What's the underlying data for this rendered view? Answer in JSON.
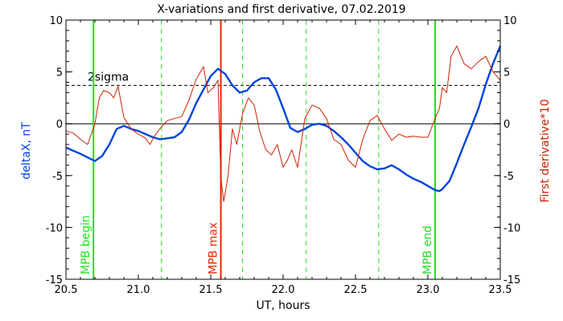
{
  "chart_data": {
    "type": "line",
    "title": "X-variations and first derivative, 07.02.2019",
    "xlabel": "UT, hours",
    "ylabel_left": "deltaX, nT",
    "ylabel_right": "First derivative*10",
    "xlim": [
      20.5,
      23.5
    ],
    "ylim_left": [
      -15,
      10
    ],
    "ylim_right": [
      -15,
      10
    ],
    "x_ticks": [
      20.5,
      21.0,
      21.5,
      22.0,
      22.5,
      23.0,
      23.5
    ],
    "x_tick_labels": [
      "20.5",
      "21.0",
      "21.5",
      "22.0",
      "22.5",
      "23.0",
      "23.5"
    ],
    "y_ticks": [
      -15,
      -10,
      -5,
      0,
      5,
      10
    ],
    "y_tick_labels": [
      "-15",
      "-10",
      "-5",
      "0",
      "5",
      "10"
    ],
    "sigma_level": 3.7,
    "sigma_label": "2sigma",
    "zero_line": 0,
    "event_lines": [
      {
        "label": "MPB begin",
        "x": 20.69,
        "color": "#22dd22"
      },
      {
        "label": "MPB max",
        "x": 21.57,
        "color": "#ee2200"
      },
      {
        "label": "MPB end",
        "x": 23.05,
        "color": "#22dd22"
      }
    ],
    "dashed_lines": [
      21.16,
      21.72,
      22.16,
      22.66
    ],
    "colors": {
      "deltaX": "#0044dd",
      "derivative": "#cc2200",
      "green": "#22dd22",
      "red": "#ee2200"
    },
    "series": [
      {
        "axis": "left",
        "x": [
          20.5,
          20.6,
          20.7,
          20.75,
          20.8,
          20.85,
          20.9,
          20.95,
          21.0,
          21.05,
          21.1,
          21.15,
          21.2,
          21.25,
          21.3,
          21.35,
          21.4,
          21.45,
          21.5,
          21.55,
          21.6,
          21.65,
          21.7,
          21.75,
          21.8,
          21.85,
          21.9,
          21.95,
          22.0,
          22.05,
          22.1,
          22.15,
          22.2,
          22.25,
          22.3,
          22.35,
          22.4,
          22.45,
          22.5,
          22.55,
          22.6,
          22.65,
          22.7,
          22.75,
          22.8,
          22.85,
          22.9,
          22.95,
          23.0,
          23.05,
          23.08,
          23.1,
          23.15,
          23.2,
          23.25,
          23.3,
          23.35,
          23.4,
          23.45,
          23.5
        ],
        "values": [
          -2.3,
          -2.9,
          -3.6,
          -3.1,
          -2.0,
          -0.5,
          -0.2,
          -0.5,
          -0.7,
          -1.0,
          -1.3,
          -1.5,
          -1.4,
          -1.3,
          -0.8,
          0.4,
          2.0,
          3.3,
          4.6,
          5.3,
          4.8,
          3.7,
          3.0,
          3.2,
          4.0,
          4.4,
          4.4,
          3.3,
          1.5,
          -0.4,
          -0.8,
          -0.5,
          -0.1,
          0.0,
          -0.2,
          -0.7,
          -1.3,
          -2.0,
          -2.8,
          -3.6,
          -4.1,
          -4.4,
          -4.3,
          -4.0,
          -4.4,
          -4.9,
          -5.3,
          -5.6,
          -6.0,
          -6.4,
          -6.5,
          -6.3,
          -5.5,
          -3.8,
          -2.0,
          -0.3,
          1.5,
          3.8,
          5.8,
          7.5
        ]
      },
      {
        "axis": "right",
        "x": [
          20.5,
          20.55,
          20.6,
          20.65,
          20.7,
          20.73,
          20.76,
          20.8,
          20.83,
          20.86,
          20.9,
          20.95,
          21.0,
          21.05,
          21.08,
          21.12,
          21.16,
          21.2,
          21.25,
          21.3,
          21.35,
          21.4,
          21.45,
          21.48,
          21.52,
          21.55,
          21.57,
          21.59,
          21.62,
          21.65,
          21.68,
          21.72,
          21.76,
          21.8,
          21.84,
          21.88,
          21.92,
          21.96,
          22.0,
          22.03,
          22.06,
          22.1,
          22.15,
          22.2,
          22.25,
          22.3,
          22.35,
          22.4,
          22.45,
          22.5,
          22.55,
          22.6,
          22.65,
          22.7,
          22.75,
          22.8,
          22.85,
          22.9,
          22.95,
          23.0,
          23.05,
          23.08,
          23.1,
          23.13,
          23.16,
          23.2,
          23.25,
          23.3,
          23.35,
          23.4,
          23.45,
          23.5
        ],
        "values": [
          -0.7,
          -0.9,
          -1.5,
          -2.0,
          0.0,
          2.5,
          3.2,
          3.0,
          2.5,
          3.6,
          0.6,
          -0.5,
          -1.0,
          -1.4,
          -2.0,
          -1.0,
          -0.3,
          0.3,
          0.5,
          0.7,
          2.3,
          4.3,
          5.5,
          3.0,
          3.5,
          4.2,
          -5.2,
          -7.5,
          -5.0,
          -0.5,
          -2.0,
          1.0,
          2.5,
          1.8,
          -0.8,
          -2.5,
          -3.0,
          -2.0,
          -4.2,
          -3.5,
          -2.5,
          -4.2,
          0.5,
          1.8,
          1.5,
          0.5,
          -1.5,
          -2.0,
          -3.5,
          -4.2,
          -1.5,
          0.3,
          0.8,
          -0.5,
          -1.6,
          -1.0,
          -1.3,
          -1.2,
          -1.3,
          -1.3,
          0.5,
          1.5,
          3.5,
          3.0,
          6.5,
          7.5,
          5.8,
          5.3,
          6.0,
          6.5,
          5.0,
          4.2
        ]
      }
    ]
  }
}
